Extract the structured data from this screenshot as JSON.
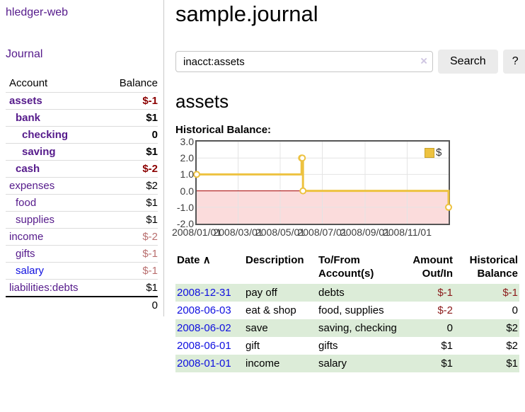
{
  "app": {
    "brand": "hledger-web"
  },
  "sidebar": {
    "journal_link": "Journal",
    "accounts_header": {
      "account": "Account",
      "balance": "Balance"
    },
    "accounts": [
      {
        "name": "assets",
        "depth": 1,
        "bold": true,
        "balance": "$-1"
      },
      {
        "name": "bank",
        "depth": 2,
        "bold": true,
        "balance": "$1"
      },
      {
        "name": "checking",
        "depth": 3,
        "bold": true,
        "balance": "0"
      },
      {
        "name": "saving",
        "depth": 3,
        "bold": true,
        "balance": "$1"
      },
      {
        "name": "cash",
        "depth": 2,
        "bold": true,
        "balance": "$-2"
      },
      {
        "name": "expenses",
        "depth": 1,
        "bold": false,
        "balance": "$2"
      },
      {
        "name": "food",
        "depth": 2,
        "bold": false,
        "balance": "$1"
      },
      {
        "name": "supplies",
        "depth": 2,
        "bold": false,
        "balance": "$1"
      },
      {
        "name": "income",
        "depth": 1,
        "bold": false,
        "balance": "$-2"
      },
      {
        "name": "gifts",
        "depth": 2,
        "bold": false,
        "balance": "$-1"
      },
      {
        "name": "salary",
        "depth": 2,
        "bold": false,
        "balance": "$-1",
        "unvisited": true
      },
      {
        "name": "liabilities:debts",
        "depth": 1,
        "bold": false,
        "balance": "$1"
      }
    ],
    "total": "0"
  },
  "main": {
    "title": "sample.journal",
    "search": {
      "value": "inacct:assets",
      "clear_icon": "×",
      "button": "Search",
      "help_button": "?"
    },
    "account_heading": "assets"
  },
  "chart_data": {
    "type": "line",
    "steps": true,
    "title": "Historical Balance:",
    "series": [
      {
        "name": "$",
        "color": "#edc240",
        "points": [
          [
            "2008-01-01",
            1
          ],
          [
            "2008-06-01",
            2
          ],
          [
            "2008-06-02",
            2
          ],
          [
            "2008-06-03",
            0
          ],
          [
            "2008-12-31",
            -1
          ]
        ]
      }
    ],
    "x_range": [
      "2008-01-01",
      "2008-12-31"
    ],
    "ylim": [
      -2,
      3
    ],
    "yticks": [
      3.0,
      2.0,
      1.0,
      0.0,
      -1.0,
      -2.0
    ],
    "xticks": [
      "2008/01/01",
      "2008/03/01",
      "2008/05/01",
      "2008/07/01",
      "2008/09/01",
      "2008/11/01"
    ],
    "legend": {
      "position": "top-right",
      "label": "$"
    },
    "grid": true,
    "colors": {
      "line": "#edc240",
      "marker_fill": "#ffffff",
      "negative_region": "#fbdcdc",
      "zero_line": "#a40000",
      "grid": "#e4e4e4",
      "border": "#555555"
    }
  },
  "register": {
    "headers": {
      "date": "Date",
      "sort_icon": "∧",
      "description": "Description",
      "accounts": "To/From Account(s)",
      "amount": "Amount Out/In",
      "balance": "Historical Balance"
    },
    "rows": [
      {
        "date": "2008-12-31",
        "description": "pay off",
        "accounts": "debts",
        "amount": "$-1",
        "balance": "$-1"
      },
      {
        "date": "2008-06-03",
        "description": "eat & shop",
        "accounts": "food, supplies",
        "amount": "$-2",
        "balance": "0"
      },
      {
        "date": "2008-06-02",
        "description": "save",
        "accounts": "saving, checking",
        "amount": "0",
        "balance": "$2"
      },
      {
        "date": "2008-06-01",
        "description": "gift",
        "accounts": "gifts",
        "amount": "$1",
        "balance": "$2"
      },
      {
        "date": "2008-01-01",
        "description": "income",
        "accounts": "salary",
        "amount": "$1",
        "balance": "$1"
      }
    ]
  }
}
